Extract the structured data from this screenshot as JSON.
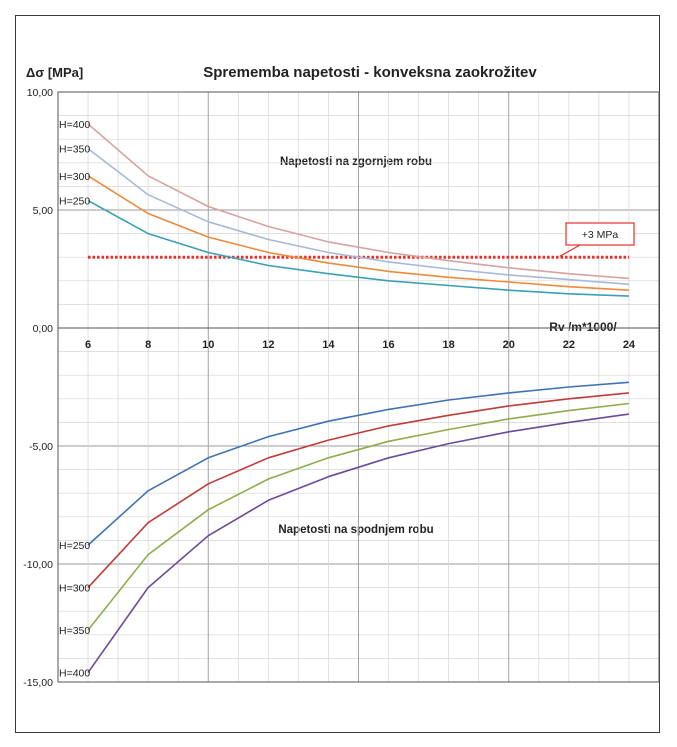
{
  "chart_data": {
    "type": "line",
    "title": "Sprememba napetosti - konveksna zaokrožitev",
    "ylabel": "Δσ [MPa]",
    "xlabel": "Rv /m*1000/",
    "x": [
      6,
      8,
      10,
      12,
      14,
      16,
      18,
      20,
      22,
      24
    ],
    "x_ticks": [
      "6",
      "8",
      "10",
      "12",
      "14",
      "16",
      "18",
      "20",
      "22",
      "24"
    ],
    "y_ticks": [
      "10,00",
      "5,00",
      "0,00",
      "-5,00",
      "-10,00",
      "-15,00"
    ],
    "xlim": [
      5,
      25
    ],
    "ylim": [
      -15,
      10
    ],
    "grid": true,
    "annotations": {
      "upper": "Napetosti na zgornjem robu",
      "lower": "Napetosti na spodnjem robu",
      "limit_label": "+3 MPa"
    },
    "limit_line": {
      "y": 3,
      "color": "#e8302a"
    },
    "series": [
      {
        "name": "H=400",
        "group": "upper",
        "color": "#d7a3a1",
        "values": [
          8.65,
          6.45,
          5.15,
          4.3,
          3.65,
          3.2,
          2.85,
          2.55,
          2.3,
          2.1
        ]
      },
      {
        "name": "H=350",
        "group": "upper",
        "color": "#a6b9d8",
        "values": [
          7.6,
          5.65,
          4.5,
          3.75,
          3.2,
          2.8,
          2.5,
          2.25,
          2.05,
          1.85
        ]
      },
      {
        "name": "H=300",
        "group": "upper",
        "color": "#ee8a3c",
        "values": [
          6.45,
          4.85,
          3.85,
          3.2,
          2.75,
          2.4,
          2.15,
          1.95,
          1.75,
          1.6
        ]
      },
      {
        "name": "H=250",
        "group": "upper",
        "color": "#3aa0b4",
        "values": [
          5.4,
          4.0,
          3.2,
          2.65,
          2.3,
          2.0,
          1.8,
          1.6,
          1.45,
          1.35
        ]
      },
      {
        "name": "H=250",
        "group": "lower",
        "color": "#3f72b5",
        "values": [
          -9.2,
          -6.9,
          -5.5,
          -4.6,
          -3.95,
          -3.45,
          -3.05,
          -2.75,
          -2.5,
          -2.3
        ]
      },
      {
        "name": "H=300",
        "group": "lower",
        "color": "#c23b3b",
        "values": [
          -11.0,
          -8.25,
          -6.6,
          -5.5,
          -4.75,
          -4.15,
          -3.7,
          -3.3,
          -3.0,
          -2.75
        ]
      },
      {
        "name": "H=350",
        "group": "lower",
        "color": "#8cad4a",
        "values": [
          -12.8,
          -9.6,
          -7.7,
          -6.4,
          -5.5,
          -4.8,
          -4.3,
          -3.85,
          -3.5,
          -3.2
        ]
      },
      {
        "name": "H=400",
        "group": "lower",
        "color": "#6a4a9a",
        "values": [
          -14.6,
          -11.0,
          -8.8,
          -7.3,
          -6.3,
          -5.5,
          -4.9,
          -4.4,
          -4.0,
          -3.65
        ]
      }
    ]
  }
}
